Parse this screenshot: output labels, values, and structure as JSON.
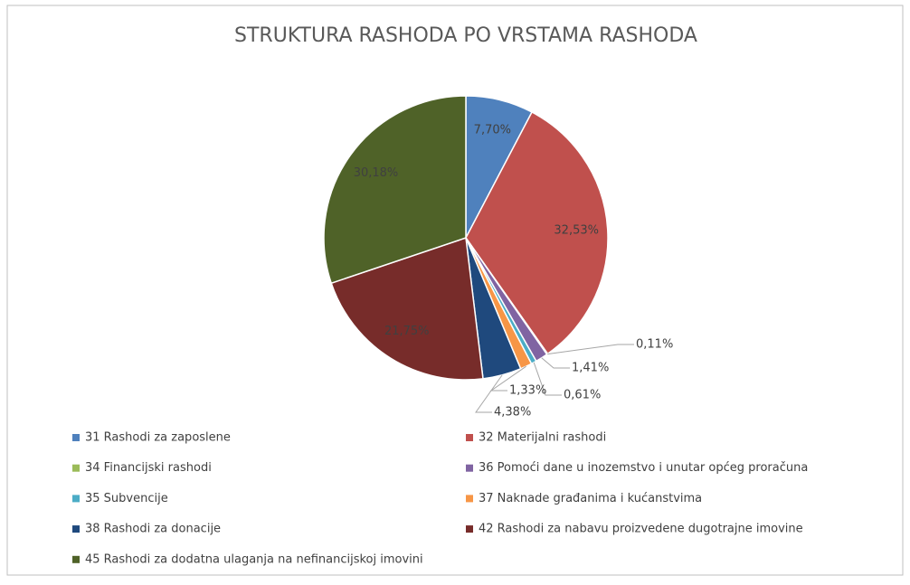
{
  "chart_data": {
    "type": "pie",
    "title": "STRUKTURA RASHODA PO VRSTAMA RASHODA",
    "categories": [
      "31 Rashodi za zaposlene",
      "32 Materijalni rashodi",
      "34 Financijski rashodi",
      "36 Pomoći dane u inozemstvo i unutar općeg proračuna",
      "35 Subvencije",
      "37 Naknade građanima i kućanstvima",
      "38 Rashodi za donacije",
      "42 Rashodi za nabavu proizvedene dugotrajne imovine",
      "45 Rashodi za dodatna ulaganja na nefinancijskoj imovini"
    ],
    "values": [
      7.7,
      32.53,
      0.11,
      1.41,
      0.61,
      1.33,
      4.38,
      21.75,
      30.18
    ],
    "value_labels": [
      "7,70%",
      "32,53%",
      "0,11%",
      "1,41%",
      "0,61%",
      "1,33%",
      "4,38%",
      "21,75%",
      "30,18%"
    ],
    "colors": [
      "#4f81bd",
      "#c0504d",
      "#9bbb59",
      "#8064a2",
      "#4bacc6",
      "#f79646",
      "#1f497d",
      "#772c2a",
      "#4f6228"
    ],
    "legend": "bottom"
  }
}
